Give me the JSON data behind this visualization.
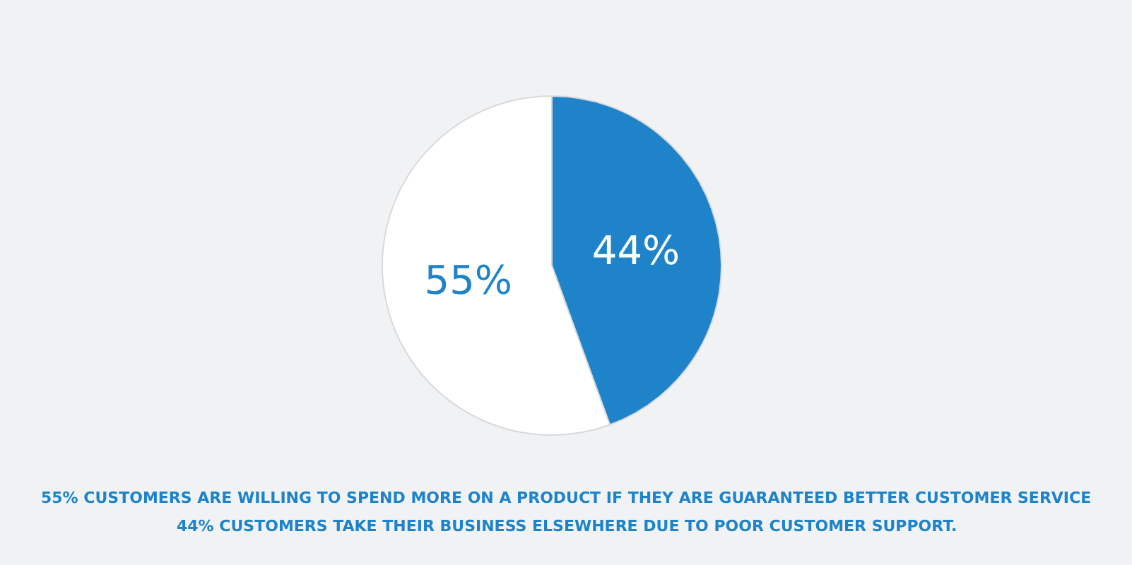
{
  "chart_data": {
    "type": "pie",
    "categories": [
      null,
      null
    ],
    "values": [
      44,
      55
    ],
    "colors": [
      "#1e83c8",
      "#ffffff"
    ],
    "value_labels": [
      "44%",
      "55%"
    ],
    "annotations": [
      "55% CUSTOMERS ARE WILLING TO SPEND MORE ON A PRODUCT IF THEY ARE GUARANTEED BETTER CUSTOMER SERVICE",
      "44% CUSTOMERS TAKE THEIR BUSINESS ELSEWHERE DUE TO POOR CUSTOMER SUPPORT."
    ],
    "legend": false
  }
}
